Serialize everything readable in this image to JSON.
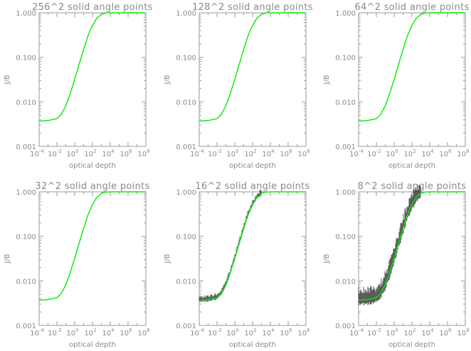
{
  "figure": {
    "ylabel": "J/B",
    "xlabel": "optical depth"
  },
  "axes": {
    "yticks": [
      "0.001",
      "0.010",
      "0.100",
      "1.000"
    ],
    "xticks": [
      {
        "base": "10",
        "exp": "-4"
      },
      {
        "base": "10",
        "exp": "-2"
      },
      {
        "base": "10",
        "exp": "0"
      },
      {
        "base": "10",
        "exp": "2"
      },
      {
        "base": "10",
        "exp": "4"
      },
      {
        "base": "10",
        "exp": "6"
      },
      {
        "base": "10",
        "exp": "8"
      }
    ]
  },
  "colors": {
    "line": "#00ee00",
    "axis": "#9a9a9a",
    "text": "#8a8a8a",
    "noise": "#333333"
  },
  "chart_data": [
    {
      "type": "line",
      "title": "256^2 solid angle points",
      "xlabel": "optical depth",
      "ylabel": "J/B",
      "xscale": "log",
      "yscale": "log",
      "xlim": [
        0.0001,
        100000000
      ],
      "ylim": [
        0.001,
        1.0
      ],
      "series": [
        {
          "x": [
            0.0001,
            0.001,
            0.01,
            0.03,
            0.1,
            0.3,
            1,
            3,
            10,
            30,
            100,
            300,
            1000,
            3000,
            10000,
            100000,
            1000000,
            10000000,
            100000000
          ],
          "y": [
            0.0037,
            0.0038,
            0.0042,
            0.0052,
            0.0082,
            0.015,
            0.032,
            0.068,
            0.15,
            0.3,
            0.52,
            0.75,
            0.92,
            0.99,
            1.0,
            1.0,
            1.0,
            1.0,
            1.0
          ]
        }
      ],
      "noise": 0
    },
    {
      "type": "line",
      "title": "128^2 solid angle points",
      "xlabel": "optical depth",
      "ylabel": "J/B",
      "xscale": "log",
      "yscale": "log",
      "xlim": [
        0.0001,
        100000000
      ],
      "ylim": [
        0.001,
        1.0
      ],
      "series": [
        {
          "x": [
            0.0001,
            0.001,
            0.01,
            0.03,
            0.1,
            0.3,
            1,
            3,
            10,
            30,
            100,
            300,
            1000,
            3000,
            10000,
            100000,
            1000000,
            10000000,
            100000000
          ],
          "y": [
            0.0037,
            0.0038,
            0.0042,
            0.0052,
            0.0082,
            0.015,
            0.032,
            0.068,
            0.15,
            0.3,
            0.52,
            0.75,
            0.92,
            0.99,
            1.0,
            1.0,
            1.0,
            1.0,
            1.0
          ]
        }
      ],
      "noise": 0
    },
    {
      "type": "line",
      "title": "64^2 solid angle points",
      "xlabel": "optical depth",
      "ylabel": "J/B",
      "xscale": "log",
      "yscale": "log",
      "xlim": [
        0.0001,
        100000000
      ],
      "ylim": [
        0.001,
        1.0
      ],
      "series": [
        {
          "x": [
            0.0001,
            0.001,
            0.01,
            0.03,
            0.1,
            0.3,
            1,
            3,
            10,
            30,
            100,
            300,
            1000,
            3000,
            10000,
            100000,
            1000000,
            10000000,
            100000000
          ],
          "y": [
            0.0037,
            0.0038,
            0.0042,
            0.0052,
            0.0082,
            0.015,
            0.032,
            0.068,
            0.15,
            0.3,
            0.52,
            0.75,
            0.92,
            0.99,
            1.0,
            1.0,
            1.0,
            1.0,
            1.0
          ]
        }
      ],
      "noise": 0
    },
    {
      "type": "line",
      "title": "32^2 solid angle points",
      "xlabel": "optical depth",
      "ylabel": "J/B",
      "xscale": "log",
      "yscale": "log",
      "xlim": [
        0.0001,
        100000000
      ],
      "ylim": [
        0.001,
        1.0
      ],
      "series": [
        {
          "x": [
            0.0001,
            0.001,
            0.01,
            0.03,
            0.1,
            0.3,
            1,
            3,
            10,
            30,
            100,
            300,
            1000,
            3000,
            10000,
            100000,
            1000000,
            10000000,
            100000000
          ],
          "y": [
            0.0037,
            0.0038,
            0.0042,
            0.0052,
            0.0082,
            0.015,
            0.032,
            0.068,
            0.15,
            0.3,
            0.52,
            0.75,
            0.92,
            0.99,
            1.0,
            1.0,
            1.0,
            1.0,
            1.0
          ]
        }
      ],
      "noise": 0
    },
    {
      "type": "line",
      "title": "16^2 solid angle points",
      "xlabel": "optical depth",
      "ylabel": "J/B",
      "xscale": "log",
      "yscale": "log",
      "xlim": [
        0.0001,
        100000000
      ],
      "ylim": [
        0.001,
        1.0
      ],
      "series": [
        {
          "x": [
            0.0001,
            0.001,
            0.01,
            0.03,
            0.1,
            0.3,
            1,
            3,
            10,
            30,
            100,
            300,
            1000,
            3000,
            10000,
            100000,
            1000000,
            10000000,
            100000000
          ],
          "y": [
            0.0037,
            0.0038,
            0.0042,
            0.0052,
            0.0082,
            0.015,
            0.032,
            0.068,
            0.15,
            0.3,
            0.52,
            0.75,
            0.92,
            0.99,
            1.0,
            1.0,
            1.0,
            1.0,
            1.0
          ]
        }
      ],
      "noise": 0.12
    },
    {
      "type": "line",
      "title": "8^2 solid angle points",
      "xlabel": "optical depth",
      "ylabel": "J/B",
      "xscale": "log",
      "yscale": "log",
      "xlim": [
        0.0001,
        100000000
      ],
      "ylim": [
        0.001,
        1.0
      ],
      "series": [
        {
          "x": [
            0.0001,
            0.001,
            0.01,
            0.03,
            0.1,
            0.3,
            1,
            3,
            10,
            30,
            100,
            300,
            1000,
            3000,
            10000,
            100000,
            1000000,
            10000000,
            100000000
          ],
          "y": [
            0.0037,
            0.0038,
            0.0042,
            0.0052,
            0.0082,
            0.015,
            0.032,
            0.068,
            0.15,
            0.3,
            0.52,
            0.75,
            0.92,
            0.99,
            1.0,
            1.0,
            1.0,
            1.0,
            1.0
          ]
        }
      ],
      "noise": 0.35
    }
  ]
}
